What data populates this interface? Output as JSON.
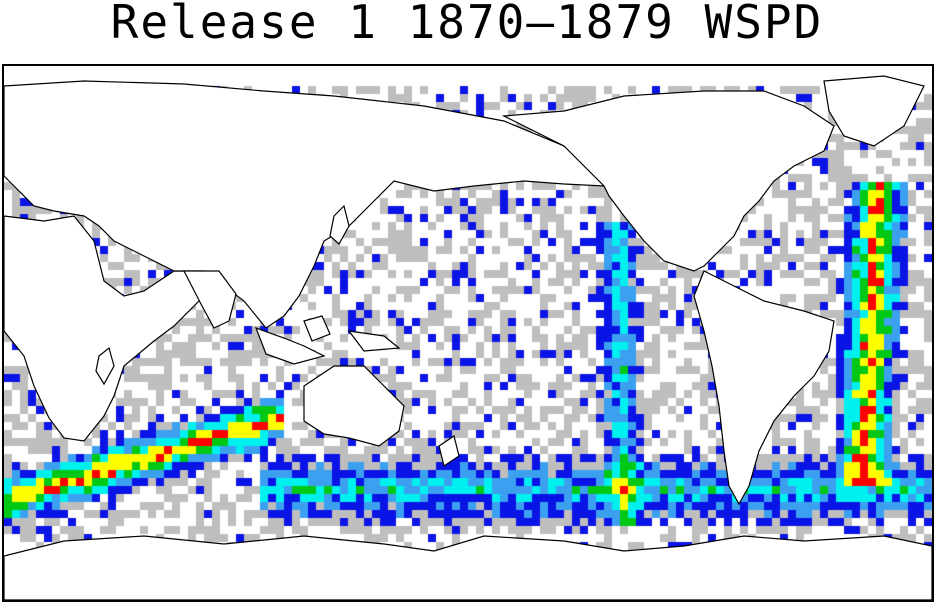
{
  "title": "Release 1 1870–1879 WSPD",
  "colors": {
    "none": "#ffffff",
    "sparse": "#bebebe",
    "level1": "#0a14e6",
    "level2": "#3ca0f0",
    "level3": "#00f0f0",
    "level4": "#00c814",
    "level5": "#ffff00",
    "level6": "#ff0000",
    "coastline": "#000000"
  }
}
